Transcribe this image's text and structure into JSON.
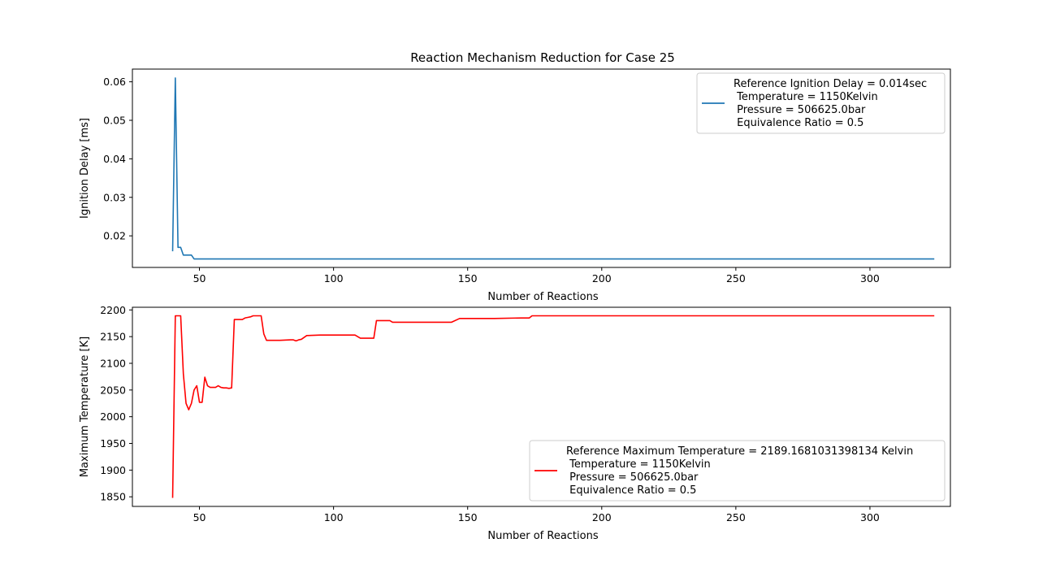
{
  "figure": {
    "title": "Reaction Mechanism Reduction for Case 25"
  },
  "chart_data": [
    {
      "type": "line",
      "title": "Reaction Mechanism Reduction for Case 25",
      "xlabel": "Number of Reactions",
      "ylabel": "Ignition Delay [ms]",
      "xlim": [
        25,
        330
      ],
      "ylim": [
        0.0118,
        0.0633
      ],
      "xticks": [
        50,
        100,
        150,
        200,
        250,
        300
      ],
      "yticks": [
        0.02,
        0.03,
        0.04,
        0.05,
        0.06
      ],
      "xtick_labels": [
        "50",
        "100",
        "150",
        "200",
        "250",
        "300"
      ],
      "ytick_labels": [
        "0.02",
        "0.03",
        "0.04",
        "0.05",
        "0.06"
      ],
      "grid": false,
      "legend_position": "upper right",
      "series": [
        {
          "name": "Reference Ignition Delay = 0.014sec\n Temperature = 1150Kelvin\n Pressure = 506625.0bar\n Equivalence Ratio = 0.5",
          "legend_lines": [
            "Reference Ignition Delay = 0.014sec",
            " Temperature = 1150Kelvin",
            " Pressure = 506625.0bar",
            " Equivalence Ratio = 0.5"
          ],
          "color": "#1f77b4",
          "x": [
            40,
            41,
            42,
            43,
            44,
            45,
            46,
            47,
            48,
            50,
            100,
            150,
            200,
            250,
            300,
            324
          ],
          "y": [
            0.016,
            0.061,
            0.017,
            0.017,
            0.015,
            0.015,
            0.015,
            0.015,
            0.014,
            0.014,
            0.014,
            0.014,
            0.014,
            0.014,
            0.014,
            0.014
          ]
        }
      ]
    },
    {
      "type": "line",
      "title": "",
      "xlabel": "Number of Reactions",
      "ylabel": "Maximum Temperature [K]",
      "xlim": [
        25,
        330
      ],
      "ylim": [
        1832,
        2205
      ],
      "xticks": [
        50,
        100,
        150,
        200,
        250,
        300
      ],
      "yticks": [
        1850,
        1900,
        1950,
        2000,
        2050,
        2100,
        2150,
        2200
      ],
      "xtick_labels": [
        "50",
        "100",
        "150",
        "200",
        "250",
        "300"
      ],
      "ytick_labels": [
        "1850",
        "1900",
        "1950",
        "2000",
        "2050",
        "2100",
        "2150",
        "2200"
      ],
      "grid": false,
      "legend_position": "lower right",
      "series": [
        {
          "name": "Reference Maximum Temperature = 2189.1681031398134 Kelvin\n Temperature = 1150Kelvin\n Pressure = 506625.0bar\n Equivalence Ratio = 0.5",
          "legend_lines": [
            "Reference Maximum Temperature = 2189.1681031398134 Kelvin",
            " Temperature = 1150Kelvin",
            " Pressure = 506625.0bar",
            " Equivalence Ratio = 0.5"
          ],
          "color": "#ff0000",
          "x": [
            40,
            41,
            42,
            43,
            44,
            45,
            46,
            47,
            48,
            49,
            50,
            51,
            52,
            53,
            54,
            55,
            56,
            57,
            58,
            59,
            60,
            61,
            62,
            63,
            64,
            65,
            66,
            67,
            68,
            69,
            70,
            71,
            72,
            73,
            74,
            75,
            80,
            84,
            85,
            86,
            87,
            88,
            90,
            95,
            100,
            105,
            107,
            108,
            110,
            114,
            115,
            116,
            120,
            121,
            122,
            125,
            130,
            140,
            143,
            144,
            147,
            150,
            160,
            170,
            172,
            173,
            174,
            180,
            200,
            250,
            300,
            324
          ],
          "y": [
            1848,
            2189,
            2189,
            2189,
            2080,
            2025,
            2013,
            2025,
            2050,
            2058,
            2027,
            2027,
            2074,
            2058,
            2055,
            2055,
            2055,
            2058,
            2055,
            2054,
            2054,
            2053,
            2054,
            2182,
            2182,
            2182,
            2182,
            2185,
            2186,
            2187,
            2189,
            2189,
            2189,
            2189,
            2155,
            2143,
            2143,
            2144,
            2144,
            2142,
            2144,
            2145,
            2152,
            2153,
            2153,
            2153,
            2153,
            2153,
            2147,
            2147,
            2147,
            2180,
            2180,
            2180,
            2177,
            2177,
            2177,
            2177,
            2177,
            2177,
            2184,
            2184,
            2184,
            2185,
            2185,
            2185,
            2189,
            2189,
            2189,
            2189,
            2189,
            2189
          ]
        }
      ]
    }
  ]
}
